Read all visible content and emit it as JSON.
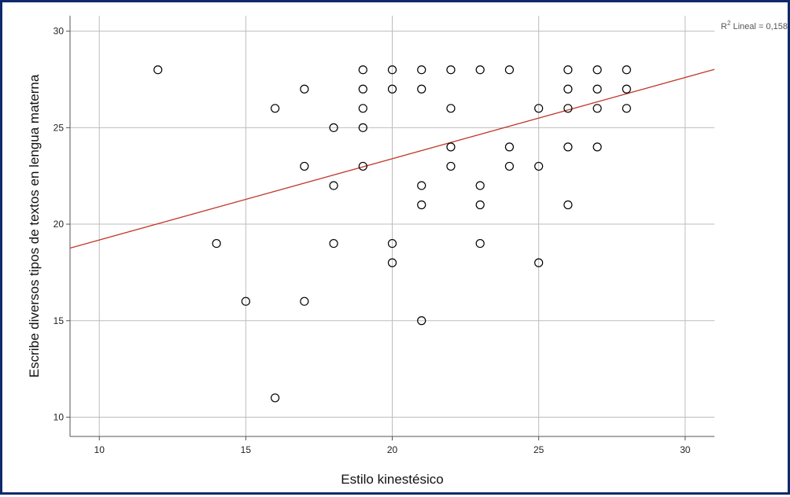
{
  "chart_data": {
    "type": "scatter",
    "title": "",
    "xlabel": "Estilo kinestésico",
    "ylabel": "Escribe diversos tipos de textos en lengua materna",
    "xlim": [
      9,
      31
    ],
    "ylim": [
      9,
      30.8
    ],
    "x_ticks": [
      10,
      15,
      20,
      25,
      30
    ],
    "y_ticks": [
      10,
      15,
      20,
      25,
      30
    ],
    "grid": true,
    "fit_line": {
      "label_main": "R",
      "label_sup": "2",
      "label_rest": " Lineal = 0,158",
      "color": "#c0392b",
      "intercept": 14.97,
      "slope": 0.421
    },
    "marker": {
      "shape": "open-circle",
      "color": "#000000"
    },
    "points": [
      [
        12,
        28
      ],
      [
        14,
        19
      ],
      [
        15,
        16
      ],
      [
        16,
        26
      ],
      [
        16,
        11
      ],
      [
        17,
        27
      ],
      [
        17,
        23
      ],
      [
        17,
        16
      ],
      [
        18,
        25
      ],
      [
        18,
        22
      ],
      [
        18,
        19
      ],
      [
        19,
        28
      ],
      [
        19,
        27
      ],
      [
        19,
        26
      ],
      [
        19,
        25
      ],
      [
        19,
        23
      ],
      [
        20,
        28
      ],
      [
        20,
        27
      ],
      [
        20,
        19
      ],
      [
        20,
        18
      ],
      [
        21,
        28
      ],
      [
        21,
        27
      ],
      [
        21,
        22
      ],
      [
        21,
        21
      ],
      [
        21,
        15
      ],
      [
        22,
        28
      ],
      [
        22,
        26
      ],
      [
        22,
        24
      ],
      [
        22,
        23
      ],
      [
        23,
        28
      ],
      [
        23,
        22
      ],
      [
        23,
        21
      ],
      [
        23,
        19
      ],
      [
        24,
        28
      ],
      [
        24,
        24
      ],
      [
        24,
        23
      ],
      [
        25,
        26
      ],
      [
        25,
        23
      ],
      [
        25,
        18
      ],
      [
        26,
        28
      ],
      [
        26,
        27
      ],
      [
        26,
        26
      ],
      [
        26,
        24
      ],
      [
        26,
        21
      ],
      [
        27,
        28
      ],
      [
        27,
        27
      ],
      [
        27,
        26
      ],
      [
        27,
        24
      ],
      [
        28,
        28
      ],
      [
        28,
        27
      ],
      [
        28,
        26
      ]
    ]
  },
  "colors": {
    "frame": "#0e2a6b",
    "grid": "#bdbdbd",
    "axis": "#555555"
  }
}
